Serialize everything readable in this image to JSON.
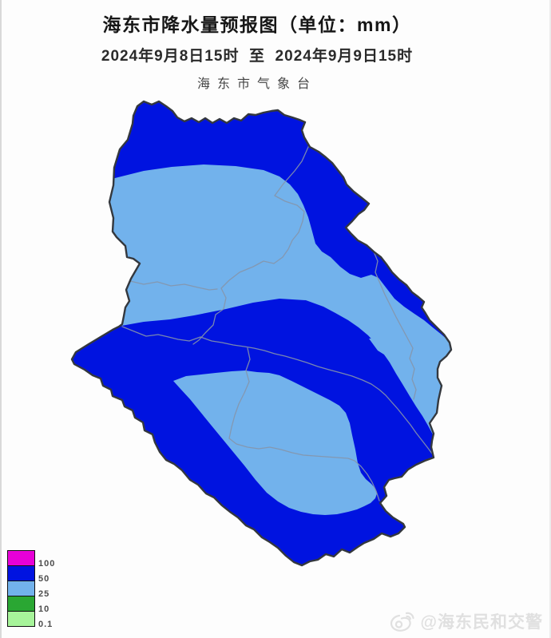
{
  "header": {
    "title": "海东市降水量预报图（单位：mm）",
    "period": "2024年9月8日15时  至  2024年9月9日15时",
    "issuer": "海东市气象台"
  },
  "legend": {
    "items": [
      {
        "value": "100",
        "color": "#e800d8"
      },
      {
        "value": "50",
        "color": "#0013e0"
      },
      {
        "value": "25",
        "color": "#72b2ec"
      },
      {
        "value": "10",
        "color": "#2aa733"
      },
      {
        "value": "0.1",
        "color": "#a7f49a"
      }
    ]
  },
  "map": {
    "region": "海东市",
    "outline_color": "#34383e",
    "county_line_color": "#8595ab",
    "zones": [
      {
        "range": "50-100",
        "area": "north band and northeast margin"
      },
      {
        "range": "25-50",
        "area": "central belt, east edge sliver, southern lens"
      },
      {
        "range": "50-100",
        "area": "west-to-southeast diagonal band and southern margin"
      }
    ]
  },
  "watermark": {
    "text": "@海东民和交警"
  }
}
